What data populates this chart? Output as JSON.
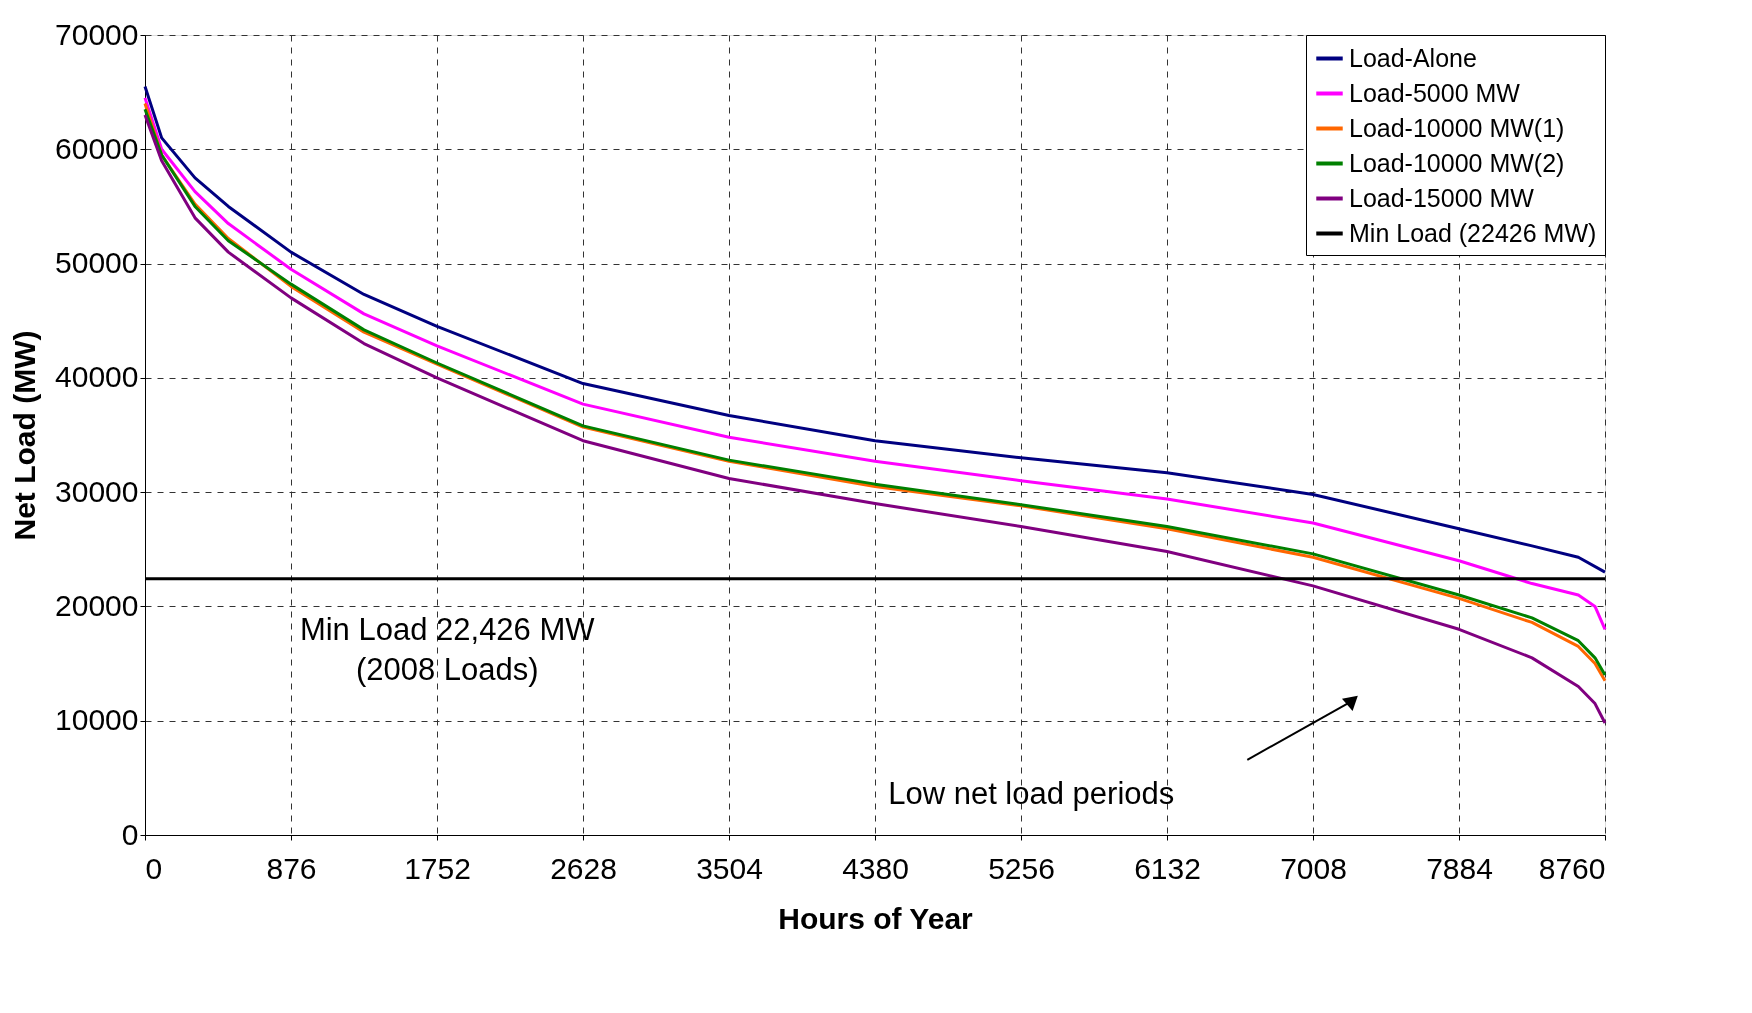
{
  "chart_data": {
    "type": "line",
    "xlabel": "Hours of Year",
    "ylabel": "Net Load (MW)",
    "xlim": [
      0,
      8760
    ],
    "xticks": [
      0,
      876,
      1752,
      2628,
      3504,
      4380,
      5256,
      6132,
      7008,
      7884,
      8760
    ],
    "ylim": [
      0,
      70000
    ],
    "yticks": [
      0,
      10000,
      20000,
      30000,
      40000,
      50000,
      60000,
      70000
    ],
    "grid": true,
    "legend": "top right",
    "annotations": [
      "Min Load 22,426 MW\n(2008 Loads)",
      "Low net load periods"
    ],
    "series": [
      {
        "name": "Load-Alone",
        "color": "#000080",
        "x": [
          0,
          100,
          300,
          500,
          876,
          1314,
          1752,
          2628,
          3504,
          4380,
          5256,
          6132,
          7008,
          7884,
          8322,
          8600,
          8760
        ],
        "values": [
          65500,
          61000,
          57500,
          55000,
          51000,
          47300,
          44500,
          39500,
          36700,
          34500,
          33000,
          31700,
          29800,
          26800,
          25300,
          24300,
          23000
        ]
      },
      {
        "name": "Load-5000 MW",
        "color": "#ff00ff",
        "x": [
          0,
          100,
          300,
          500,
          876,
          1314,
          1752,
          2628,
          3504,
          4380,
          5256,
          6132,
          7008,
          7884,
          8322,
          8600,
          8700,
          8760
        ],
        "values": [
          64500,
          60000,
          56300,
          53500,
          49500,
          45600,
          42800,
          37700,
          34800,
          32700,
          31000,
          29400,
          27300,
          24000,
          22000,
          21000,
          20000,
          18000
        ]
      },
      {
        "name": "Load-10000 MW(1)",
        "color": "#ff6600",
        "x": [
          0,
          100,
          300,
          500,
          876,
          1314,
          1752,
          2628,
          3504,
          4380,
          5256,
          6132,
          7008,
          7884,
          8322,
          8600,
          8700,
          8760
        ],
        "values": [
          64000,
          59500,
          55200,
          52200,
          48000,
          44000,
          41200,
          35700,
          32700,
          30500,
          28800,
          26800,
          24300,
          20700,
          18600,
          16500,
          15000,
          13500
        ]
      },
      {
        "name": "Load-10000 MW(2)",
        "color": "#008000",
        "x": [
          0,
          100,
          300,
          500,
          876,
          1314,
          1752,
          2628,
          3504,
          4380,
          5256,
          6132,
          7008,
          7884,
          8322,
          8600,
          8700,
          8760
        ],
        "values": [
          63500,
          59500,
          55000,
          52000,
          48200,
          44200,
          41300,
          35800,
          32800,
          30700,
          28900,
          27000,
          24600,
          21000,
          19000,
          17000,
          15500,
          14000
        ]
      },
      {
        "name": "Load-15000 MW",
        "color": "#800080",
        "x": [
          0,
          100,
          300,
          500,
          876,
          1314,
          1752,
          2628,
          3504,
          4380,
          5256,
          6132,
          7008,
          7884,
          8322,
          8600,
          8700,
          8760
        ],
        "values": [
          63000,
          59000,
          54000,
          51000,
          47000,
          43000,
          40000,
          34500,
          31200,
          29000,
          27000,
          24800,
          21800,
          18000,
          15500,
          13000,
          11500,
          9800
        ]
      },
      {
        "name": "Min Load (22426 MW)",
        "color": "#000000",
        "x": [
          0,
          8760
        ],
        "values": [
          22426,
          22426
        ]
      }
    ]
  }
}
